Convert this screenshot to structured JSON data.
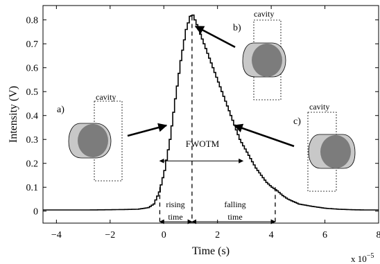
{
  "chart_data": {
    "type": "line",
    "xlabel": "Time (s)",
    "ylabel": "Intensity (V)",
    "x_multiplier": "x 10",
    "x_multiplier_exponent": "−5",
    "xlim": [
      -4.5,
      8
    ],
    "ylim": [
      -0.05,
      0.86
    ],
    "xticks": [
      -4,
      -2,
      0,
      2,
      4,
      6,
      8
    ],
    "xtick_labels": [
      "−4",
      "−2",
      "0",
      "2",
      "4",
      "6",
      "8"
    ],
    "yticks": [
      0,
      0.1,
      0.2,
      0.3,
      0.4,
      0.5,
      0.6,
      0.7,
      0.8
    ],
    "ytick_labels": [
      "0",
      "0.1",
      "0.2",
      "0.3",
      "0.4",
      "0.5",
      "0.6",
      "0.7",
      "0.8"
    ],
    "grid": false,
    "series": [
      {
        "x": [
          -4.5,
          -4.0,
          -3.0,
          -2.0,
          -1.0,
          -0.6,
          -0.4,
          -0.2,
          0.0,
          0.2,
          0.4,
          0.6,
          0.8,
          0.95,
          1.05,
          1.2,
          1.4,
          1.6,
          1.8,
          2.0,
          2.2,
          2.4,
          2.6,
          2.8,
          3.0,
          3.2,
          3.4,
          3.6,
          3.8,
          4.0,
          4.2,
          4.4,
          4.6,
          5.0,
          5.5,
          6.0,
          6.5,
          7.0,
          7.5,
          8.0
        ],
        "y": [
          0.005,
          0.005,
          0.005,
          0.006,
          0.008,
          0.015,
          0.03,
          0.08,
          0.17,
          0.3,
          0.47,
          0.63,
          0.76,
          0.815,
          0.82,
          0.78,
          0.72,
          0.66,
          0.6,
          0.54,
          0.48,
          0.42,
          0.36,
          0.3,
          0.26,
          0.22,
          0.18,
          0.15,
          0.12,
          0.1,
          0.085,
          0.065,
          0.05,
          0.03,
          0.02,
          0.012,
          0.008,
          0.006,
          0.005,
          0.005
        ]
      }
    ],
    "markers": {
      "vlines_x": [
        -0.15,
        1.05,
        4.15
      ],
      "fwotm": {
        "label": "FWOTM",
        "x_start": -0.15,
        "x_end": 2.95,
        "y": 0.21
      },
      "rising": {
        "label_line1": "rising",
        "label_line2": "time",
        "x_start": -0.15,
        "x_end": 1.05
      },
      "falling": {
        "label_line1": "falling",
        "label_line2": "time",
        "x_start": 1.05,
        "x_end": 4.15
      }
    },
    "annotations": [
      {
        "id": "a",
        "label": "a)",
        "cavity_label": "cavity",
        "arrow_to": [
          0.2,
          0.37
        ]
      },
      {
        "id": "b",
        "label": "b)",
        "cavity_label": "cavity",
        "arrow_to": [
          1.1,
          0.815
        ]
      },
      {
        "id": "c",
        "label": "c)",
        "cavity_label": "cavity",
        "arrow_to": [
          2.55,
          0.37
        ]
      }
    ]
  },
  "colors": {
    "line": "#000000",
    "drop_light": "#c8c8c8",
    "drop_dark": "#7c7c7c",
    "cavity_box": "#000000"
  }
}
